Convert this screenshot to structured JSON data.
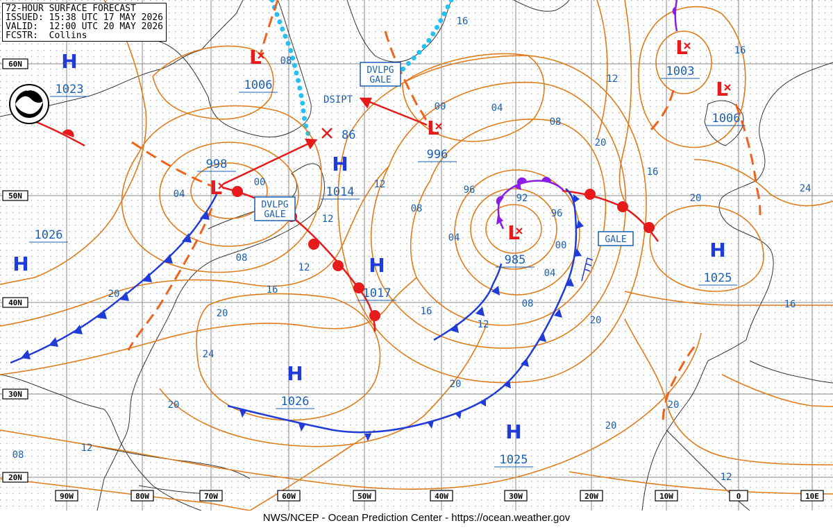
{
  "header": {
    "line1": "72-HOUR SURFACE FORECAST",
    "line2": "ISSUED: 15:38 UTC 17 MAY 2026",
    "line3": "VALID:  12:00 UTC 20 MAY 2026",
    "line4": "FCSTR:  Collins"
  },
  "footer": "NWS/NCEP - Ocean Prediction Center - https://ocean.weather.gov",
  "logo": {
    "text": "NOAA",
    "icon": "noaa-logo-icon"
  },
  "colors": {
    "isobar": "#e07b1a",
    "front_cold": "#1f3bd8",
    "front_warm": "#e61a1a",
    "trough": "#f0621a",
    "high": "#1f3bd8",
    "low": "#e61a1a",
    "occluded": "#8a1ee6",
    "ice_edge": "#27c0f0",
    "label": "#1a5fb4",
    "grid": "#888888"
  },
  "latitudes": [
    {
      "label": "60N"
    },
    {
      "label": "50N"
    },
    {
      "label": "40N"
    },
    {
      "label": "30N"
    },
    {
      "label": "20N"
    }
  ],
  "longitudes": [
    {
      "label": "90W"
    },
    {
      "label": "80W"
    },
    {
      "label": "70W"
    },
    {
      "label": "60W"
    },
    {
      "label": "50W"
    },
    {
      "label": "40W"
    },
    {
      "label": "30W"
    },
    {
      "label": "20W"
    },
    {
      "label": "10W"
    },
    {
      "label": "0"
    },
    {
      "label": "10E"
    }
  ],
  "highs": [
    {
      "letter": "H",
      "pressure": "1023"
    },
    {
      "letter": "H",
      "pressure": "1026"
    },
    {
      "letter": "H",
      "pressure": "1014"
    },
    {
      "letter": "H",
      "pressure": "1017"
    },
    {
      "letter": "H",
      "pressure": "1026"
    },
    {
      "letter": "H",
      "pressure": "1025"
    },
    {
      "letter": "H",
      "pressure": "1025"
    }
  ],
  "lows": [
    {
      "letter": "L",
      "pressure": "1006"
    },
    {
      "letter": "L",
      "pressure": "998"
    },
    {
      "letter": "L",
      "pressure": "996"
    },
    {
      "letter": "L",
      "pressure": "985"
    },
    {
      "letter": "L",
      "pressure": "1003"
    },
    {
      "letter": "L",
      "pressure": "1006"
    }
  ],
  "dissipating": {
    "pressure": "86",
    "label": "DSIPT"
  },
  "warnings": [
    {
      "line1": "DVLPG",
      "line2": "GALE"
    },
    {
      "line1": "DVLPG",
      "line2": "GALE"
    },
    {
      "line1": "GALE"
    }
  ],
  "isobar_labels": [
    "08",
    "00",
    "04",
    "00",
    "12",
    "08",
    "04",
    "04",
    "16",
    "96",
    "92",
    "96",
    "00",
    "04",
    "08",
    "12",
    "16",
    "20",
    "12",
    "08",
    "16",
    "12",
    "08",
    "16",
    "20",
    "20",
    "24",
    "20",
    "16",
    "20",
    "20",
    "24",
    "12",
    "16",
    "20",
    "20",
    "12",
    "08",
    "12",
    "20"
  ]
}
